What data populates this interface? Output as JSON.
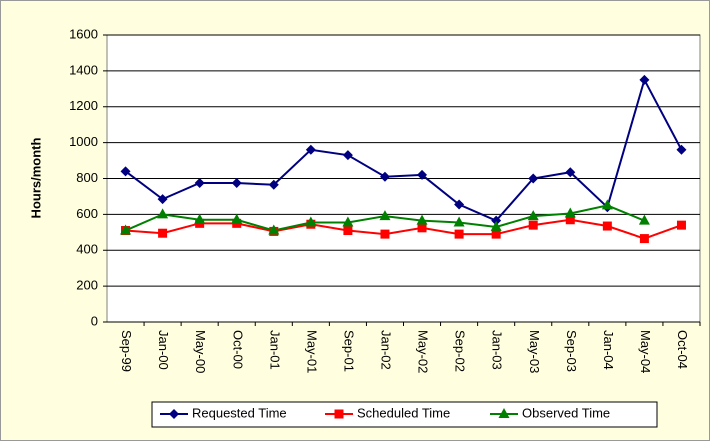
{
  "chart_data": {
    "type": "line",
    "y_label": "Hours/month",
    "categories": [
      "Sep-99",
      "Jan-00",
      "May-00",
      "Oct-00",
      "Jan-01",
      "May-01",
      "Sep-01",
      "Jan-02",
      "May-02",
      "Sep-02",
      "Jan-03",
      "May-03",
      "Sep-03",
      "Jan-04",
      "May-04",
      "Oct-04"
    ],
    "series": [
      {
        "name": "Requested Time",
        "color": "#000080",
        "marker": "diamond",
        "values": [
          840,
          685,
          775,
          775,
          765,
          960,
          930,
          810,
          820,
          655,
          565,
          800,
          835,
          640,
          1350,
          960
        ]
      },
      {
        "name": "Scheduled Time",
        "color": "#ff0000",
        "marker": "square",
        "values": [
          510,
          495,
          550,
          550,
          505,
          545,
          510,
          490,
          525,
          490,
          490,
          540,
          570,
          535,
          465,
          540
        ]
      },
      {
        "name": "Observed Time",
        "color": "#008000",
        "marker": "triangle",
        "values": [
          510,
          600,
          570,
          570,
          510,
          555,
          555,
          590,
          565,
          555,
          530,
          590,
          605,
          650,
          565,
          null
        ]
      }
    ],
    "ylim": [
      0,
      1600
    ],
    "yticks": [
      0,
      200,
      400,
      600,
      800,
      1000,
      1200,
      1400,
      1600
    ],
    "grid": true
  }
}
